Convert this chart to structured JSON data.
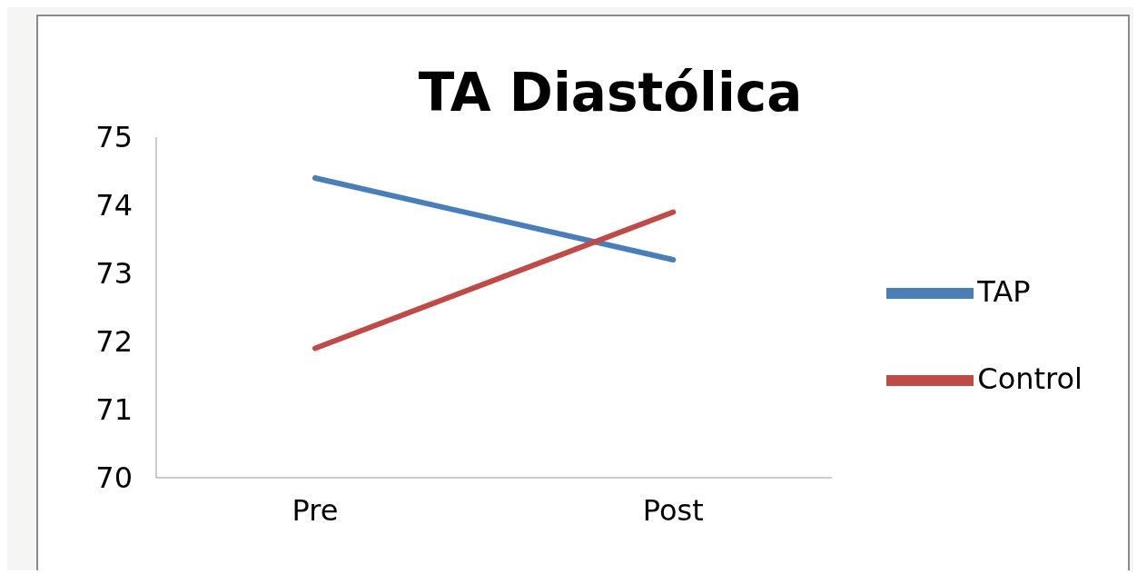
{
  "chart_data": {
    "type": "line",
    "title": "TA Diastólica",
    "categories": [
      "Pre",
      "Post"
    ],
    "series": [
      {
        "name": "TAP",
        "color": "#4a7ebb",
        "values": [
          74.4,
          73.2
        ]
      },
      {
        "name": "Control",
        "color": "#be4b48",
        "values": [
          71.9,
          73.9
        ]
      }
    ],
    "ylim": [
      70,
      75
    ],
    "yticks": [
      70,
      71,
      72,
      73,
      74,
      75
    ],
    "grid": false,
    "legend": "right",
    "marker": "none",
    "line_style": "solid"
  }
}
